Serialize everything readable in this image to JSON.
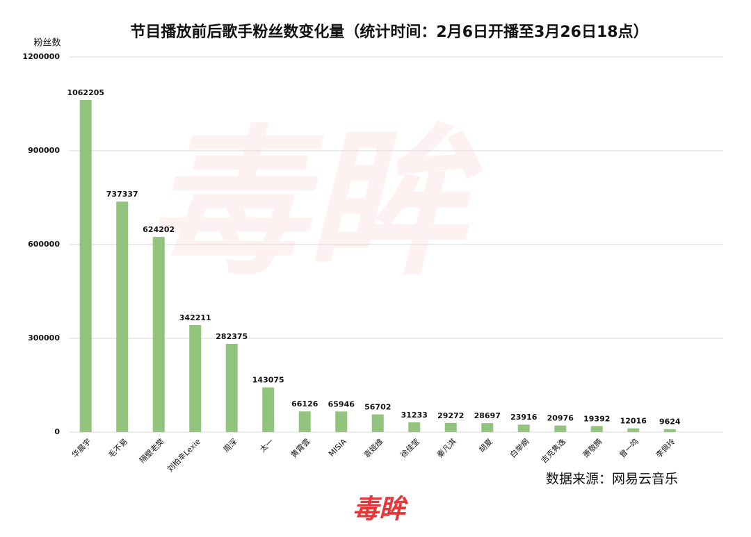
{
  "chart_data": {
    "type": "bar",
    "title": "节目播放前后歌手粉丝数变化量（统计时间：2月6日开播至3月26日18点）",
    "y_label": "粉丝数",
    "categories": [
      "华晨宇",
      "毛不易",
      "隔壁老樊",
      "刘柏辛Lexie",
      "周深",
      "太一",
      "黄霄雲",
      "MISIA",
      "袁娅维",
      "徐佳莹",
      "秦凡淇",
      "胡夏",
      "白举纲",
      "吉克隽逸",
      "萧敬腾",
      "曾一鸣",
      "李佩玲"
    ],
    "values": [
      1062205,
      737337,
      624202,
      342211,
      282375,
      143075,
      66126,
      65946,
      56702,
      31233,
      29272,
      28697,
      23916,
      20976,
      19392,
      12016,
      9624
    ],
    "color": "#93c47d",
    "ylim": [
      0,
      1200000
    ],
    "yticks": [
      0,
      300000,
      600000,
      900000,
      1200000
    ],
    "grid": true,
    "source": "数据来源：网易云音乐",
    "watermark": "毒眸",
    "logo": "毒眸"
  }
}
